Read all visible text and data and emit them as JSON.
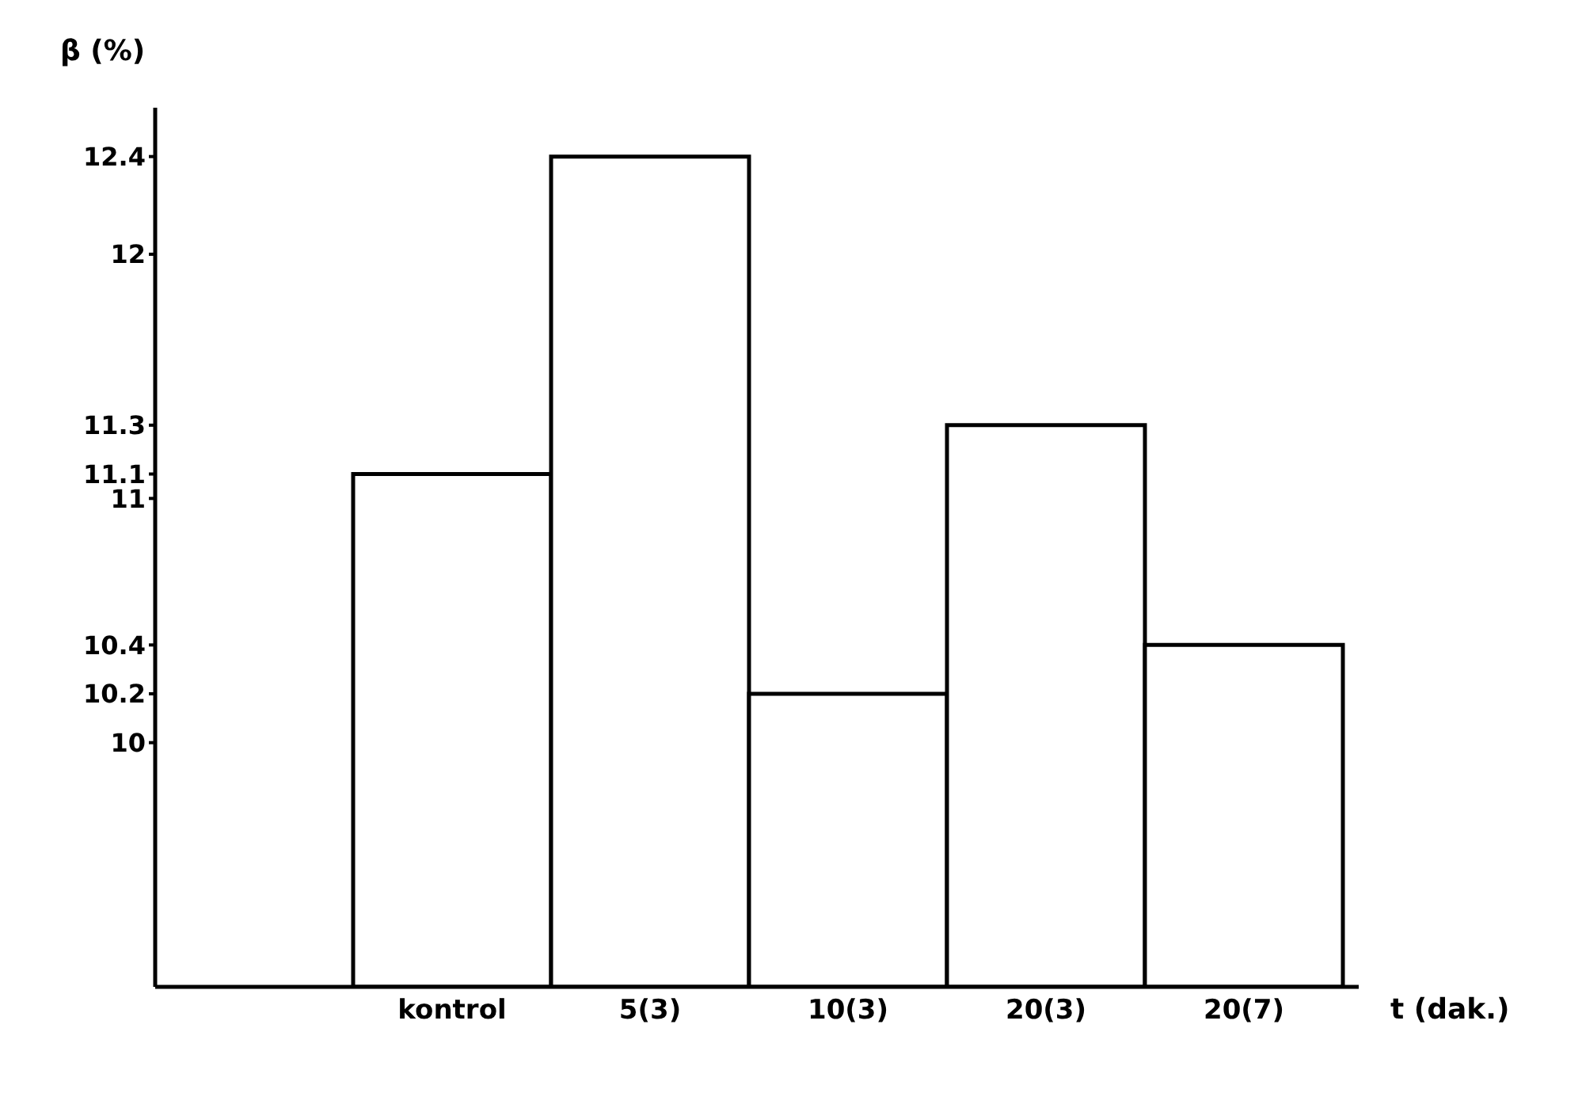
{
  "chart_data": {
    "type": "bar",
    "ylabel": "β (%)",
    "xlabel": "t (dak.)",
    "categories": [
      null,
      "kontrol",
      "5(3)",
      "10(3)",
      "20(3)",
      "20(7)"
    ],
    "values": [
      null,
      11.1,
      12.4,
      10.2,
      11.3,
      10.4
    ],
    "color": "#ffffff",
    "ylim": [
      9,
      12.6
    ],
    "yticks": [
      10,
      10.2,
      10.4,
      11,
      11.1,
      11.3,
      12,
      12.4
    ],
    "grid": false,
    "legend": false
  }
}
